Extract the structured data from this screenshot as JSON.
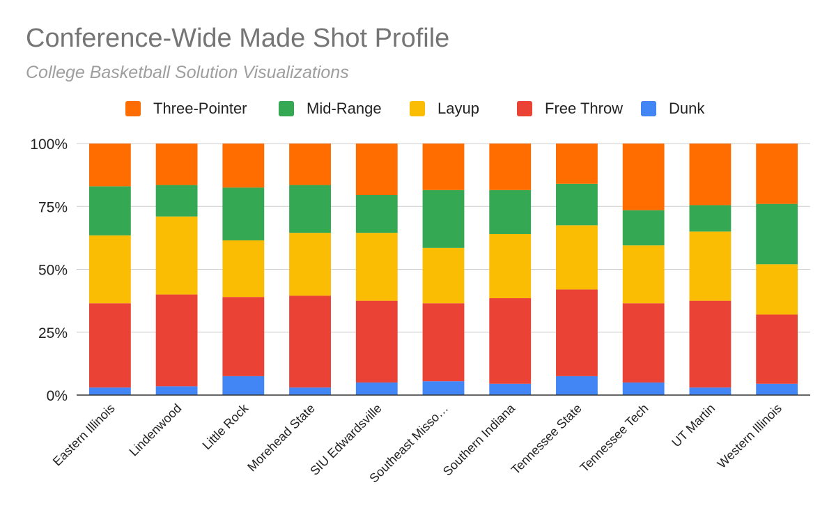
{
  "chart_data": {
    "type": "bar",
    "stacked": true,
    "normalized": true,
    "title": "Conference-Wide Made Shot Profile",
    "subtitle": "College Basketball Solution Visualizations",
    "categories": [
      "Eastern Illinois",
      "Lindenwood",
      "Little Rock",
      "Morehead State",
      "SIU Edwardsville",
      "Southeast Misso…",
      "Southern Indiana",
      "Tennessee State",
      "Tennessee Tech",
      "UT Martin",
      "Western Illinois"
    ],
    "series": [
      {
        "name": "Dunk",
        "color": "#4285f4",
        "values": [
          3,
          3.5,
          7.5,
          3,
          5,
          5.5,
          4.5,
          7.5,
          5,
          3,
          4.5
        ]
      },
      {
        "name": "Free Throw",
        "color": "#ea4335",
        "values": [
          33.5,
          36.5,
          31.5,
          36.5,
          32.5,
          31,
          34,
          34.5,
          31.5,
          34.5,
          27.5
        ]
      },
      {
        "name": "Layup",
        "color": "#fbbc04",
        "values": [
          27,
          31,
          22.5,
          25,
          27,
          22,
          25.5,
          25.5,
          23,
          27.5,
          20
        ]
      },
      {
        "name": "Mid-Range",
        "color": "#34a853",
        "values": [
          19.5,
          12.5,
          21,
          19,
          15,
          23,
          17.5,
          16.5,
          14,
          10.5,
          24
        ]
      },
      {
        "name": "Three-Pointer",
        "color": "#ff6d01",
        "values": [
          17,
          16.5,
          17.5,
          16.5,
          20.5,
          18.5,
          18.5,
          16,
          26.5,
          24.5,
          24
        ]
      }
    ],
    "legend_order": [
      "Three-Pointer",
      "Mid-Range",
      "Layup",
      "Free Throw",
      "Dunk"
    ],
    "legend_position": "top",
    "y_ticks": [
      "0%",
      "25%",
      "50%",
      "75%",
      "100%"
    ],
    "ylim": [
      0,
      100
    ],
    "grid": true,
    "xlabel": "",
    "ylabel": ""
  }
}
